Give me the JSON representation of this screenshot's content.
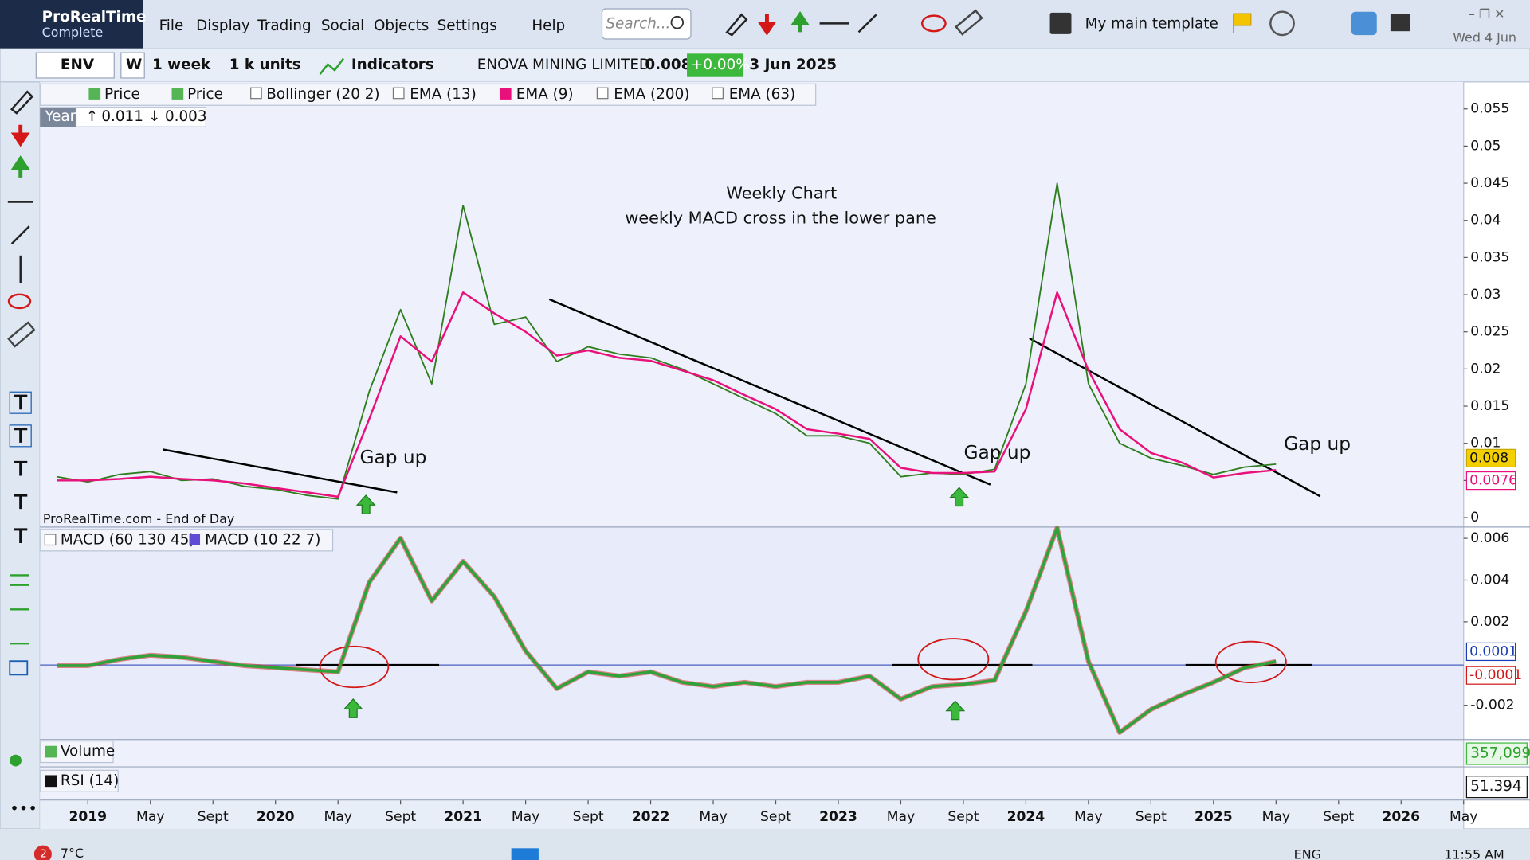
{
  "header": {
    "brand": "ProRealTime",
    "edition": "Complete",
    "menu": [
      "File",
      "Display",
      "Trading",
      "Social",
      "Objects",
      "Settings",
      "Help"
    ],
    "search_placeholder": "Search...",
    "template": "My main template",
    "date": "Wed 4 Jun"
  },
  "toolbar": {
    "ticker": "ENV",
    "period_short": "W",
    "period": "1 week",
    "units": "1 k units",
    "indicators": "Indicators",
    "name": "ENOVA MINING LIMITED",
    "last": "0.008",
    "change": "+0.00%",
    "date": "3 Jun 2025"
  },
  "indicator_bar": {
    "items": [
      "Price",
      "Bollinger (20 2)",
      "EMA (13)",
      "EMA (200)",
      "EMA (63)"
    ]
  },
  "year_box": {
    "label": "Year",
    "high": 0.011,
    "low": 0.003
  },
  "chart_data": [
    {
      "type": "line",
      "annotations": [
        "Weekly Chart",
        "weekly MACD cross in the lower pane",
        "Gap up",
        "Gap up",
        "Gap up"
      ],
      "source": "ProRealTime.com - End of Day",
      "x": [
        "2018-11",
        "2019-01",
        "2019-03",
        "2019-05",
        "2019-07",
        "2019-09",
        "2019-11",
        "2020-01",
        "2020-03",
        "2020-05",
        "2020-07",
        "2020-09",
        "2020-11",
        "2021-01",
        "2021-03",
        "2021-05",
        "2021-07",
        "2021-09",
        "2021-11",
        "2022-01",
        "2022-03",
        "2022-05",
        "2022-07",
        "2022-09",
        "2022-11",
        "2023-01",
        "2023-03",
        "2023-05",
        "2023-07",
        "2023-09",
        "2023-11",
        "2024-01",
        "2024-03",
        "2024-05",
        "2024-07",
        "2024-09",
        "2024-11",
        "2025-01",
        "2025-03",
        "2025-05"
      ],
      "series": [
        {
          "name": "Price",
          "color": "#2e7d1f",
          "values": [
            0.0055,
            0.0048,
            0.0058,
            0.0062,
            0.005,
            0.0052,
            0.0042,
            0.0038,
            0.003,
            0.0025,
            0.017,
            0.028,
            0.018,
            0.042,
            0.026,
            0.027,
            0.021,
            0.023,
            0.022,
            0.0215,
            0.02,
            0.018,
            0.016,
            0.014,
            0.011,
            0.011,
            0.01,
            0.0055,
            0.006,
            0.0058,
            0.0065,
            0.018,
            0.045,
            0.018,
            0.01,
            0.008,
            0.007,
            0.0058,
            0.0068,
            0.0072
          ]
        },
        {
          "name": "EMA (9)",
          "color": "#e8107a",
          "values": [
            0.005,
            0.005,
            0.0052,
            0.0055,
            0.0052,
            0.005,
            0.0046,
            0.004,
            0.0034,
            0.0028,
            0.0133,
            0.0244,
            0.021,
            0.0303,
            0.0275,
            0.025,
            0.0218,
            0.0225,
            0.0215,
            0.0211,
            0.0198,
            0.0185,
            0.0165,
            0.0146,
            0.0119,
            0.0113,
            0.0106,
            0.0067,
            0.006,
            0.006,
            0.0062,
            0.0146,
            0.0303,
            0.0198,
            0.0119,
            0.0087,
            0.0074,
            0.0054,
            0.006,
            0.0064
          ]
        }
      ],
      "current_values": [
        0.008,
        0.0076
      ],
      "xlim": [
        "2018-10",
        "2026-05"
      ],
      "xticks": [
        {
          "value": "2019-01",
          "label": "2019"
        },
        {
          "value": "2019-05",
          "label": "May"
        },
        {
          "value": "2019-09",
          "label": "Sept"
        },
        {
          "value": "2020-01",
          "label": "2020"
        },
        {
          "value": "2020-05",
          "label": "May"
        },
        {
          "value": "2020-09",
          "label": "Sept"
        },
        {
          "value": "2021-01",
          "label": "2021"
        },
        {
          "value": "2021-05",
          "label": "May"
        },
        {
          "value": "2021-09",
          "label": "Sept"
        },
        {
          "value": "2022-01",
          "label": "2022"
        },
        {
          "value": "2022-05",
          "label": "May"
        },
        {
          "value": "2022-09",
          "label": "Sept"
        },
        {
          "value": "2023-01",
          "label": "2023"
        },
        {
          "value": "2023-05",
          "label": "May"
        },
        {
          "value": "2023-09",
          "label": "Sept"
        },
        {
          "value": "2024-01",
          "label": "2024"
        },
        {
          "value": "2024-05",
          "label": "May"
        },
        {
          "value": "2024-09",
          "label": "Sept"
        },
        {
          "value": "2025-01",
          "label": "2025"
        },
        {
          "value": "2025-05",
          "label": "May"
        },
        {
          "value": "2025-09",
          "label": "Sept"
        },
        {
          "value": "2026-01",
          "label": "2026"
        },
        {
          "value": "2026-05",
          "label": "May"
        }
      ],
      "ylim": [
        -0.0012,
        0.0585
      ],
      "yticks": [
        0,
        0.005,
        0.01,
        0.015,
        0.02,
        0.025,
        0.03,
        0.035,
        0.04,
        0.045,
        0.05,
        0.055
      ]
    },
    {
      "type": "line",
      "indicator": "MACD (60 130 45)",
      "x": [
        "2018-11",
        "2019-01",
        "2019-03",
        "2019-05",
        "2019-07",
        "2019-09",
        "2019-11",
        "2020-01",
        "2020-03",
        "2020-05",
        "2020-07",
        "2020-09",
        "2020-11",
        "2021-01",
        "2021-03",
        "2021-05",
        "2021-07",
        "2021-09",
        "2021-11",
        "2022-01",
        "2022-03",
        "2022-05",
        "2022-07",
        "2022-09",
        "2022-11",
        "2023-01",
        "2023-03",
        "2023-05",
        "2023-07",
        "2023-09",
        "2023-11",
        "2024-01",
        "2024-03",
        "2024-05",
        "2024-07",
        "2024-09",
        "2024-11",
        "2025-01",
        "2025-03",
        "2025-05"
      ],
      "series": [
        {
          "name": "MACD (10 22 7)",
          "color": "#2fa33a",
          "values": [
            -0.0001,
            -0.0001,
            0.0002,
            0.0004,
            0.0003,
            0.0001,
            -0.0001,
            -0.0002,
            -0.0003,
            -0.0004,
            0.0039,
            0.006,
            0.003,
            0.0049,
            0.0032,
            0.0006,
            -0.0012,
            -0.0004,
            -0.0006,
            -0.0004,
            -0.0009,
            -0.0011,
            -0.0009,
            -0.0011,
            -0.0009,
            -0.0009,
            -0.0006,
            -0.0017,
            -0.0011,
            -0.001,
            -0.0008,
            0.0025,
            0.0065,
            0.0001,
            -0.0033,
            -0.0022,
            -0.0015,
            -0.0009,
            -0.0002,
            0.0001
          ]
        }
      ],
      "current_values": [
        0.0001,
        -0.0001
      ],
      "xlim": [
        "2018-10",
        "2026-05"
      ],
      "ylim": [
        -0.00362,
        0.00652
      ],
      "yticks": [
        0.006,
        0.004,
        0.002,
        -0.002
      ]
    }
  ],
  "panes": {
    "volume": {
      "label": "Volume",
      "last": "357,099"
    },
    "rsi": {
      "label": "RSI (14)",
      "last": 51.394
    }
  },
  "taskbar": {
    "badge": "2",
    "weather": "7°C",
    "lang": "ENG",
    "time": "11:55 AM"
  }
}
